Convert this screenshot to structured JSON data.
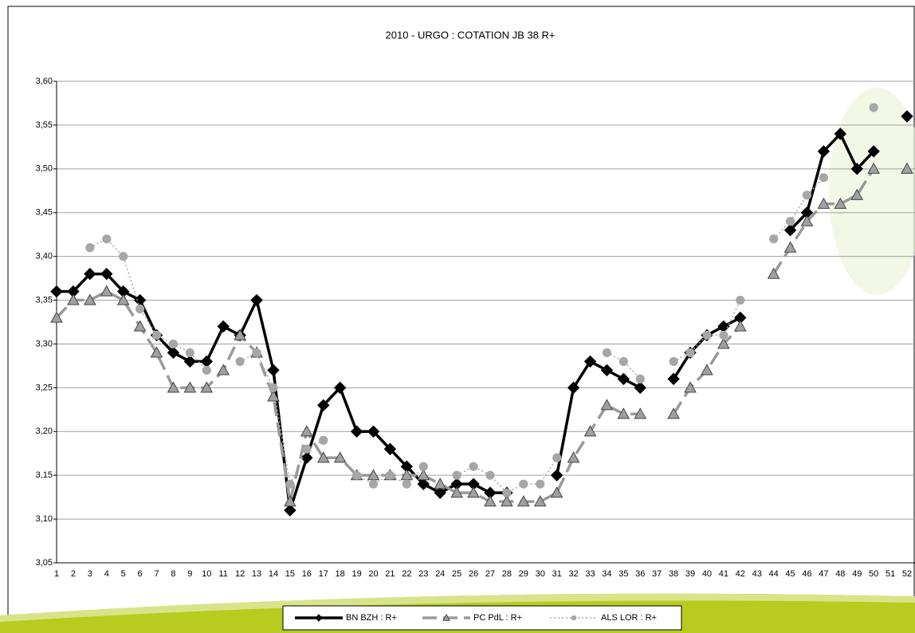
{
  "chart_data": {
    "type": "line",
    "title": "2010 - URGO : COTATION JB 38 R+",
    "categories": [
      "1",
      "2",
      "3",
      "4",
      "5",
      "6",
      "7",
      "8",
      "9",
      "10",
      "11",
      "12",
      "13",
      "14",
      "15",
      "16",
      "17",
      "18",
      "19",
      "20",
      "21",
      "22",
      "23",
      "24",
      "25",
      "26",
      "27",
      "28",
      "29",
      "30",
      "31",
      "32",
      "33",
      "34",
      "35",
      "36",
      "37",
      "38",
      "39",
      "40",
      "41",
      "42",
      "43",
      "44",
      "45",
      "46",
      "47",
      "48",
      "49",
      "50",
      "51",
      "52"
    ],
    "ylim": [
      3.05,
      3.6
    ],
    "yticks": [
      {
        "value": 3.05,
        "label": "3,05"
      },
      {
        "value": 3.1,
        "label": "3,10"
      },
      {
        "value": 3.15,
        "label": "3,15"
      },
      {
        "value": 3.2,
        "label": "3,20"
      },
      {
        "value": 3.25,
        "label": "3,25"
      },
      {
        "value": 3.3,
        "label": "3,30"
      },
      {
        "value": 3.35,
        "label": "3,35"
      },
      {
        "value": 3.4,
        "label": "3,40"
      },
      {
        "value": 3.45,
        "label": "3,45"
      },
      {
        "value": 3.5,
        "label": "3,50"
      },
      {
        "value": 3.55,
        "label": "3,55"
      },
      {
        "value": 3.6,
        "label": "3,60"
      }
    ],
    "grid": true,
    "legend": "bottom",
    "series": [
      {
        "name": "BN BZH : R+",
        "color": "#000000",
        "marker": "diamond",
        "dash": "solid",
        "values": [
          3.36,
          3.36,
          3.38,
          3.38,
          3.36,
          3.35,
          3.31,
          3.29,
          3.28,
          3.28,
          3.32,
          3.31,
          3.35,
          3.27,
          3.11,
          3.17,
          3.23,
          3.25,
          3.2,
          3.2,
          3.18,
          3.16,
          3.14,
          3.13,
          3.14,
          3.14,
          3.13,
          3.13,
          null,
          null,
          3.15,
          3.25,
          3.28,
          3.27,
          3.26,
          3.25,
          null,
          3.26,
          3.29,
          3.31,
          3.32,
          3.33,
          null,
          null,
          3.43,
          3.45,
          3.52,
          3.54,
          3.5,
          3.52,
          null,
          3.56
        ]
      },
      {
        "name": "PC PdL : R+",
        "color": "#999999",
        "marker": "triangle",
        "dash": "dashed",
        "values": [
          3.33,
          3.35,
          3.35,
          3.36,
          3.35,
          3.32,
          3.29,
          3.25,
          3.25,
          3.25,
          3.27,
          3.31,
          3.29,
          3.24,
          3.12,
          3.2,
          3.17,
          3.17,
          3.15,
          3.15,
          3.15,
          3.15,
          3.15,
          3.14,
          3.13,
          3.13,
          3.12,
          3.12,
          3.12,
          3.12,
          3.13,
          3.17,
          3.2,
          3.23,
          3.22,
          3.22,
          null,
          3.22,
          3.25,
          3.27,
          3.3,
          3.32,
          null,
          3.38,
          3.41,
          3.44,
          3.46,
          3.46,
          3.47,
          3.5,
          null,
          3.5
        ]
      },
      {
        "name": "ALS LOR : R+",
        "color": "#a6a6a6",
        "marker": "circle",
        "dash": "dotted",
        "values": [
          null,
          null,
          3.41,
          3.42,
          3.4,
          3.34,
          3.31,
          3.3,
          3.29,
          3.27,
          null,
          3.28,
          3.29,
          3.25,
          3.14,
          3.18,
          3.19,
          null,
          3.15,
          3.14,
          3.15,
          3.14,
          3.16,
          null,
          3.15,
          3.16,
          3.15,
          3.13,
          3.14,
          3.14,
          3.17,
          null,
          null,
          3.29,
          3.28,
          3.26,
          null,
          3.28,
          3.29,
          3.31,
          3.31,
          3.35,
          null,
          3.42,
          3.44,
          3.47,
          3.49,
          null,
          null,
          3.57,
          null,
          null
        ]
      }
    ]
  }
}
